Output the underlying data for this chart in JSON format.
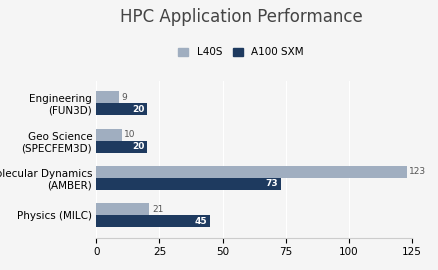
{
  "title": "HPC Application Performance",
  "categories": [
    "Physics (MILC)",
    "Molecular Dynamics\n(AMBER)",
    "Geo Science\n(SPECFEM3D)",
    "Engineering\n(FUN3D)"
  ],
  "l40s_values": [
    21,
    123,
    10,
    9
  ],
  "a100_values": [
    45,
    73,
    20,
    20
  ],
  "l40s_color": "#a0aec0",
  "a100_color": "#1e3a5f",
  "bar_height": 0.32,
  "xlim": [
    0,
    125
  ],
  "xticks": [
    0,
    25,
    50,
    75,
    100,
    125
  ],
  "legend_labels": [
    "L40S",
    "A100 SXM"
  ],
  "title_fontsize": 12,
  "label_fontsize": 7.5,
  "tick_fontsize": 7.5,
  "value_fontsize": 6.5,
  "background_color": "#f5f5f5"
}
